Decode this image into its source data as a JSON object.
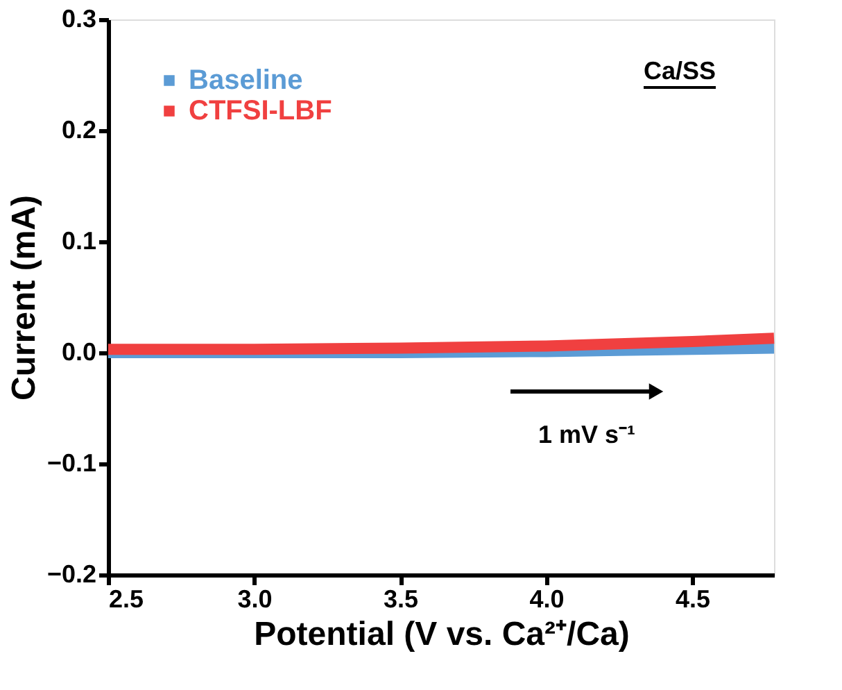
{
  "chart_data": {
    "type": "line",
    "xlabel": "Potential (V vs. Ca²⁺/Ca)",
    "ylabel": "Current (mA)",
    "x": [
      2.5,
      3.0,
      3.5,
      4.0,
      4.25,
      4.5,
      4.78
    ],
    "series": [
      {
        "name": "Baseline",
        "color": "#5b9bd5",
        "values": [
          0.0,
          0.0,
          0.0,
          0.001,
          0.002,
          0.003,
          0.004
        ]
      },
      {
        "name": "CTFSI-LBF",
        "color": "#f04040",
        "values": [
          0.003,
          0.003,
          0.004,
          0.006,
          0.008,
          0.01,
          0.013
        ]
      }
    ],
    "xlim": [
      2.5,
      4.78
    ],
    "xticks": [
      2.5,
      {
        "value": 3.0,
        "label": "3.0"
      },
      3.5,
      {
        "value": 4.0,
        "label": "4.0"
      },
      4.5
    ],
    "ylim": [
      -0.2,
      0.3
    ],
    "yticks": [
      -0.2,
      -0.1,
      {
        "value": 0.0,
        "label": "0.0"
      },
      0.1,
      0.2,
      0.3
    ],
    "grid": false,
    "legend": "top left",
    "marker": "none",
    "line_style": "solid",
    "annotations": [
      "Ca/SS",
      "1 mV s⁻¹"
    ]
  }
}
